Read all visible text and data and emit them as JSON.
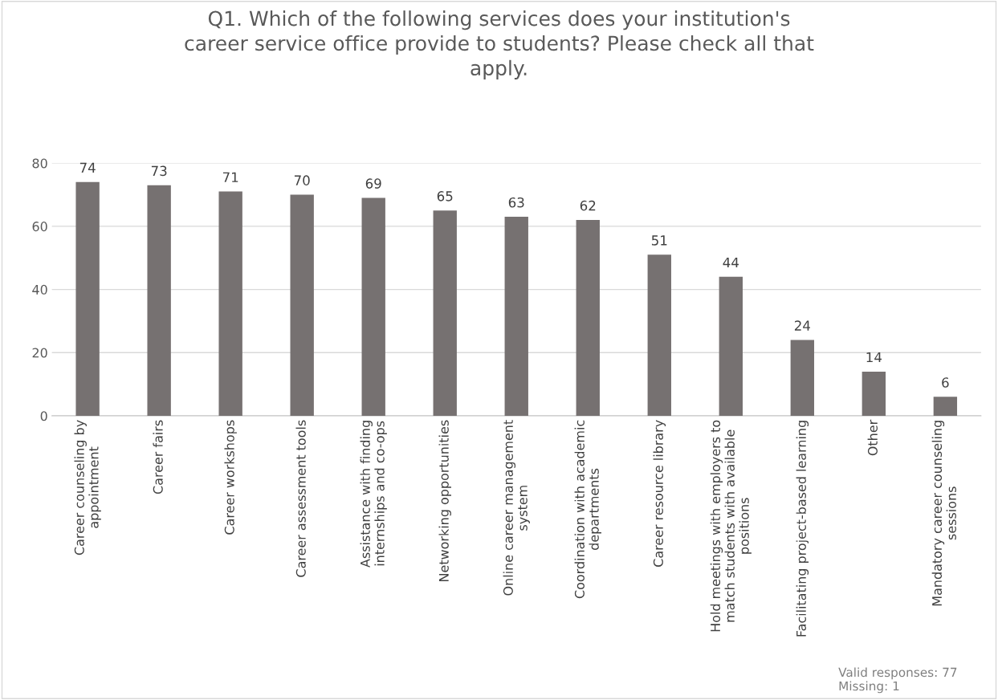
{
  "chart_data": {
    "type": "bar",
    "title": "Q1. Which of the following services does your institution's\ncareer service office provide to students? Please check all that\napply.",
    "categories": [
      "Career counseling by\nappointment",
      "Career fairs",
      "Career workshops",
      "Career assessment tools",
      "Assistance with finding\ninternships and co-ops",
      "Networking opportunities",
      "Online career management\nsystem",
      "Coordination with academic\ndepartments",
      "Career resource library",
      "Hold meetings with employers to\nmatch students with available\npositions",
      "Facilitating project-based learning",
      "Other",
      "Mandatory career counseling\nsessions"
    ],
    "values": [
      74,
      73,
      71,
      70,
      69,
      65,
      63,
      62,
      51,
      44,
      24,
      14,
      6
    ],
    "color": "#767171",
    "ylim": [
      0,
      80
    ],
    "yticks": [
      0,
      20,
      40,
      60,
      80
    ],
    "grid": "y",
    "data_labels": true,
    "annotations": [
      "Valid responses: 77\nMissing: 1"
    ]
  }
}
